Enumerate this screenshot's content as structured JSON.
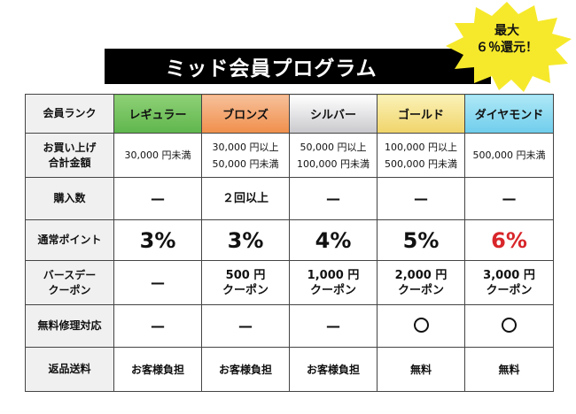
{
  "title": "ミッド会員プログラム",
  "badge": {
    "line1": "最大",
    "line2": "６％還元！"
  },
  "table": {
    "header": {
      "label": "会員ランク",
      "ranks": [
        "レギュラー",
        "ブロンズ",
        "シルバー",
        "ゴールド",
        "ダイヤモンド"
      ]
    },
    "rows": {
      "purchase_total": {
        "label1": "お買い上げ",
        "label2": "合計金額",
        "regular": "30,000 円未満",
        "bronze1": "30,000 円以上",
        "bronze2": "50,000 円未満",
        "silver1": "50,000 円以上",
        "silver2": "100,000 円未満",
        "gold1": "100,000 円以上",
        "gold2": "500,000 円未満",
        "diamond": "500,000 円未満"
      },
      "purchase_count": {
        "label": "購入数",
        "regular": "—",
        "bronze": "２回以上",
        "silver": "—",
        "gold": "—",
        "diamond": "—"
      },
      "points": {
        "label": "通常ポイント",
        "regular": "3%",
        "bronze": "3%",
        "silver": "4%",
        "gold": "5%",
        "diamond": "6%",
        "highlight_color": "#d8262a"
      },
      "birthday": {
        "label1": "バースデー",
        "label2": "クーポン",
        "regular": "—",
        "bronze1": "500 円",
        "bronze2": "クーポン",
        "silver1": "1,000 円",
        "silver2": "クーポン",
        "gold1": "2,000 円",
        "gold2": "クーポン",
        "diamond1": "3,000 円",
        "diamond2": "クーポン"
      },
      "repair": {
        "label": "無料修理対応",
        "regular": "—",
        "bronze": "—",
        "silver": "—",
        "gold_icon": "circle-icon",
        "diamond_icon": "circle-icon"
      },
      "return_shipping": {
        "label": "返品送料",
        "regular": "お客様負担",
        "bronze": "お客様負担",
        "silver": "お客様負担",
        "gold": "無料",
        "diamond": "無料"
      }
    }
  }
}
